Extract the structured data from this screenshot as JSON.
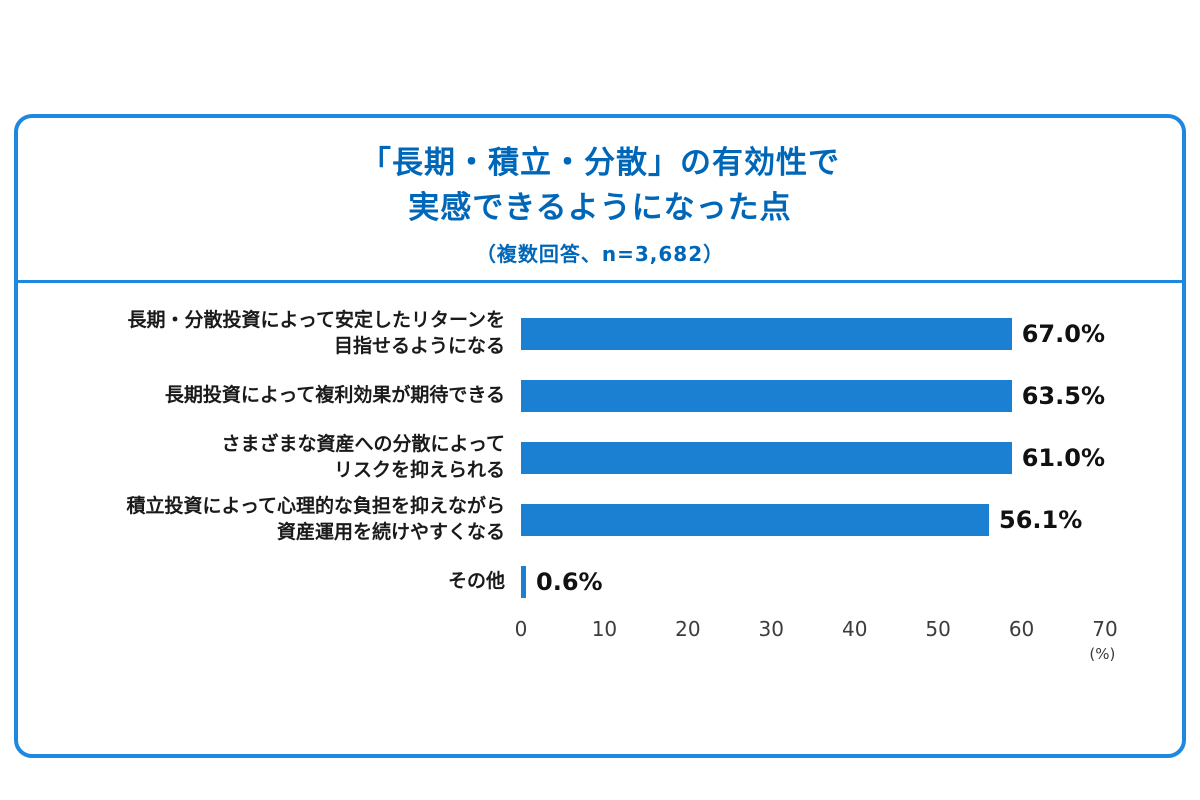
{
  "header": {
    "title_line1": "「長期・積立・分散」の有効性で",
    "title_line2": "実感できるようになった点",
    "subtitle": "（複数回答、n=3,682）"
  },
  "chart_data": {
    "type": "bar",
    "orientation": "horizontal",
    "title": "「長期・積立・分散」の有効性で実感できるようになった点",
    "subtitle": "（複数回答、n=3,682）",
    "categories": [
      "長期・分散投資によって安定したリターンを\n目指せるようになる",
      "長期投資によって複利効果が期待できる",
      "さまざまな資産への分散によって\nリスクを抑えられる",
      "積立投資によって心理的な負担を抑えながら\n資産運用を続けやすくなる",
      "その他"
    ],
    "values": [
      67.0,
      63.5,
      61.0,
      56.1,
      0.6
    ],
    "value_labels": [
      "67.0%",
      "63.5%",
      "61.0%",
      "56.1%",
      "0.6%"
    ],
    "x_ticks": [
      0,
      10,
      20,
      30,
      40,
      50,
      60,
      70
    ],
    "xlim": [
      0,
      70
    ],
    "x_unit": "(%)",
    "bar_color": "#1b7fd2",
    "accent_color": "#1e88e0",
    "title_color": "#0067b8",
    "grid": "off",
    "legend": "none"
  }
}
